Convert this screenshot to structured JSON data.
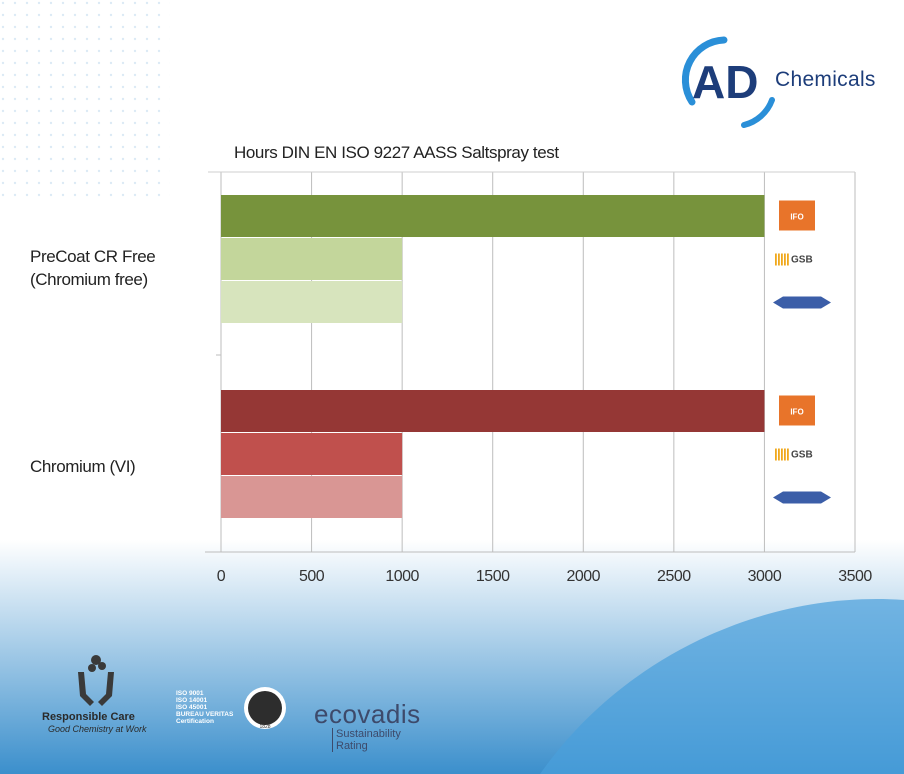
{
  "brand": {
    "name": "AD",
    "suffix": "Chemicals",
    "accent": "#2a8fd8",
    "navy": "#1d3d7a"
  },
  "chart_data": {
    "type": "bar",
    "orientation": "horizontal",
    "title": "Hours DIN EN ISO 9227 AASS Saltspray test",
    "xlabel": "",
    "ylabel": "",
    "xlim": [
      0,
      3500
    ],
    "xticks": [
      0,
      500,
      1000,
      1500,
      2000,
      2500,
      3000,
      3500
    ],
    "grid": "vertical",
    "groups": [
      {
        "label_lines": [
          "PreCoat CR Free",
          "(Chromium free)"
        ],
        "bars": [
          {
            "value": 3000,
            "color": "#77933c",
            "badge": "IFO"
          },
          {
            "value": 1000,
            "color": "#c3d69b",
            "badge": "GSB"
          },
          {
            "value": 1000,
            "color": "#d7e4bd",
            "badge": "Qualicoat"
          }
        ]
      },
      {
        "label_lines": [
          "Chromium (VI)"
        ],
        "bars": [
          {
            "value": 3000,
            "color": "#953735",
            "badge": "IFO"
          },
          {
            "value": 1000,
            "color": "#c0504d",
            "badge": "GSB"
          },
          {
            "value": 1000,
            "color": "#d99694",
            "badge": "Qualicoat"
          }
        ]
      }
    ]
  },
  "badges": {
    "ifo": "IFO",
    "gsb": "GSB",
    "ifo_color": "#e8742a",
    "gsb_color": "#f0a81c",
    "qualicoat_color": "#3b5ea8"
  },
  "footer": {
    "rc_title": "Responsible Care",
    "rc_sub": "Good Chemistry at Work",
    "bv_lines": [
      "ISO 9001",
      "ISO 14001",
      "ISO 45001",
      "BUREAU VERITAS",
      "Certification"
    ],
    "bv_seal_year": "1828",
    "eco_title": "ecovadis",
    "eco_sub_1": "Sustainability",
    "eco_sub_2": "Rating"
  }
}
